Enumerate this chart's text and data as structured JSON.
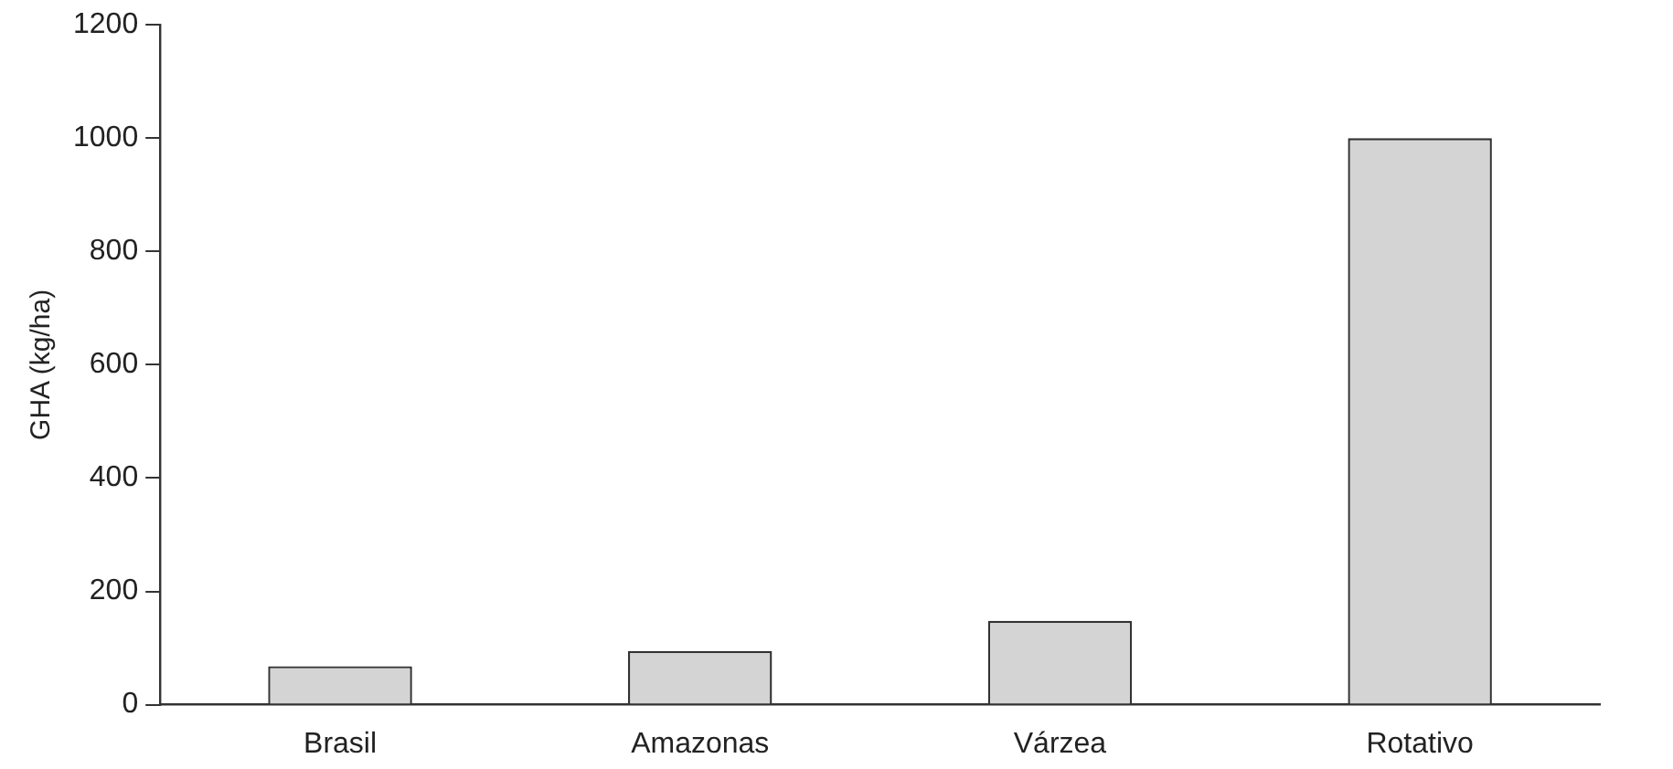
{
  "chart_data": {
    "type": "bar",
    "ylabel": "GHA (kg/ha)",
    "categories": [
      "Brasil",
      "Amazonas",
      "Várzea",
      "Rotativo"
    ],
    "values": [
      68,
      95,
      148,
      1000
    ],
    "color": "#d4d4d4",
    "ylim": [
      0,
      1200
    ],
    "yticks": [
      0,
      200,
      400,
      600,
      800,
      1000,
      1200
    ],
    "grid": false,
    "legend": false
  }
}
